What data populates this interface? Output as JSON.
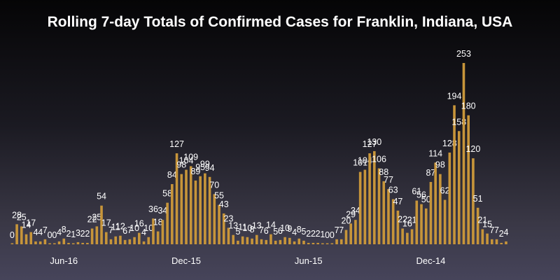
{
  "chart_data": {
    "type": "bar",
    "title": "Rolling 7-day Totals of Confirmed Cases for Franklin, Indiana, USA",
    "xlabel": "",
    "ylabel": "",
    "ylim": [
      0,
      253
    ],
    "grid": false,
    "bar_color": "#c7953a",
    "tick_labels": [
      {
        "label": "Jun-16",
        "index": 11
      },
      {
        "label": "Dec-15",
        "index": 37
      },
      {
        "label": "Jun-15",
        "index": 63
      },
      {
        "label": "Dec-14",
        "index": 89
      }
    ],
    "values": [
      0,
      28,
      25,
      14,
      17,
      4,
      4,
      7,
      0,
      0,
      4,
      8,
      2,
      1,
      3,
      2,
      2,
      22,
      25,
      54,
      17,
      7,
      11,
      12,
      6,
      7,
      10,
      16,
      4,
      10,
      36,
      18,
      34,
      58,
      84,
      127,
      98,
      104,
      109,
      89,
      95,
      99,
      94,
      70,
      55,
      43,
      23,
      13,
      5,
      11,
      10,
      8,
      13,
      7,
      6,
      14,
      5,
      6,
      10,
      9,
      4,
      8,
      5,
      2,
      2,
      2,
      1,
      0,
      0,
      7,
      7,
      20,
      29,
      34,
      101,
      104,
      127,
      130,
      106,
      88,
      77,
      63,
      47,
      22,
      16,
      21,
      61,
      56,
      50,
      87,
      114,
      98,
      62,
      128,
      194,
      158,
      253,
      180,
      120,
      51,
      21,
      15,
      7,
      7,
      2,
      4
    ]
  }
}
